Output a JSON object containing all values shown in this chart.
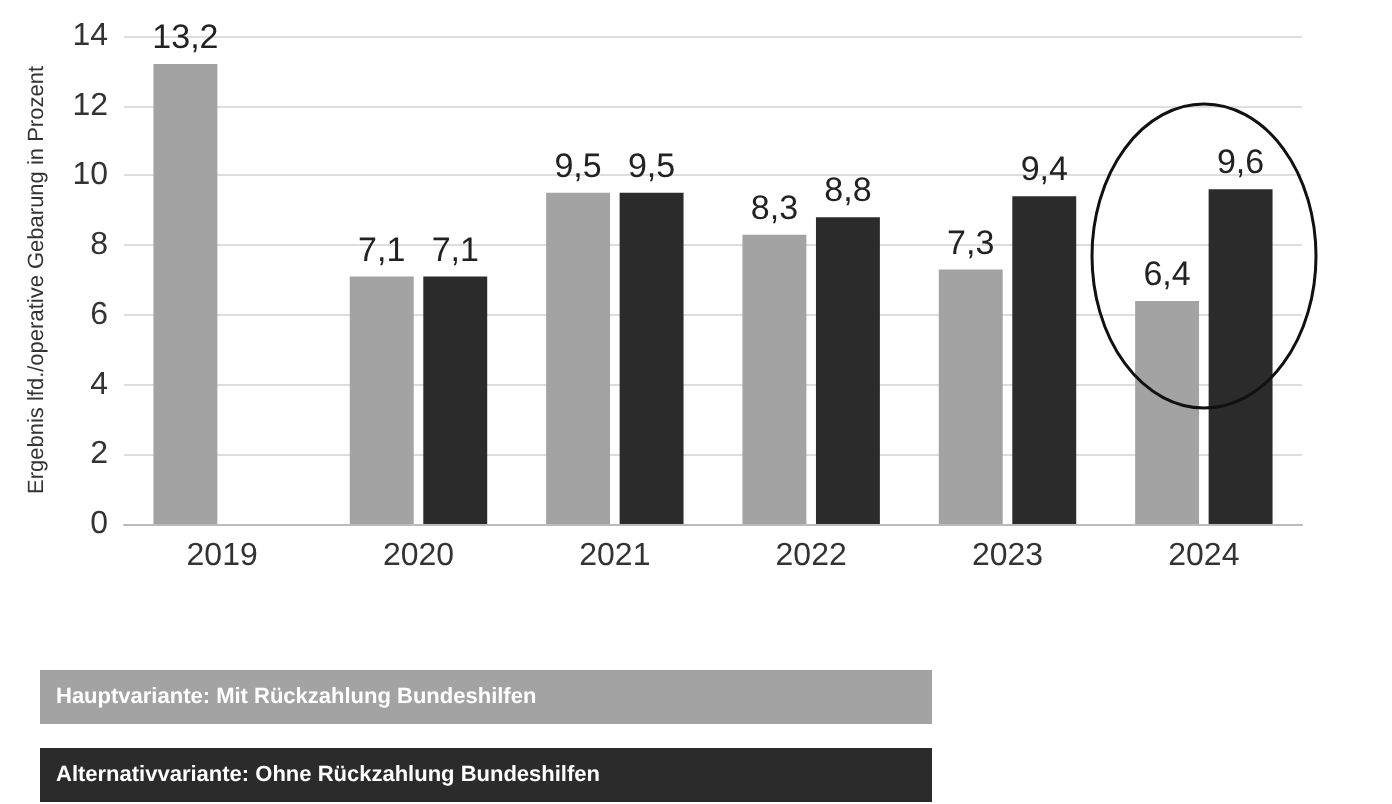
{
  "chart_data": {
    "type": "bar",
    "ylabel": "Ergebnis lfd./operative Gebarung in Prozent",
    "categories": [
      "2019",
      "2020",
      "2021",
      "2022",
      "2023",
      "2024"
    ],
    "series": [
      {
        "name": "Hauptvariante: Mit Rückzahlung Bundeshilfen",
        "color": "#a3a3a3",
        "values": [
          13.2,
          7.1,
          9.5,
          8.3,
          7.3,
          6.4
        ],
        "value_labels": [
          "13,2",
          "7,1",
          "9,5",
          "8,3",
          "7,3",
          "6,4"
        ]
      },
      {
        "name": "Alternativvariante: Ohne Rückzahlung Bundeshilfen",
        "color": "#2b2b2b",
        "values": [
          null,
          7.1,
          9.5,
          8.8,
          9.4,
          9.6
        ],
        "value_labels": [
          null,
          "7,1",
          "9,5",
          "8,8",
          "9,4",
          "9,6"
        ]
      }
    ],
    "ylim": [
      0,
      14
    ],
    "yticks": [
      0,
      2,
      4,
      6,
      8,
      10,
      12,
      14
    ],
    "grid": "y",
    "legend": "bottom"
  }
}
